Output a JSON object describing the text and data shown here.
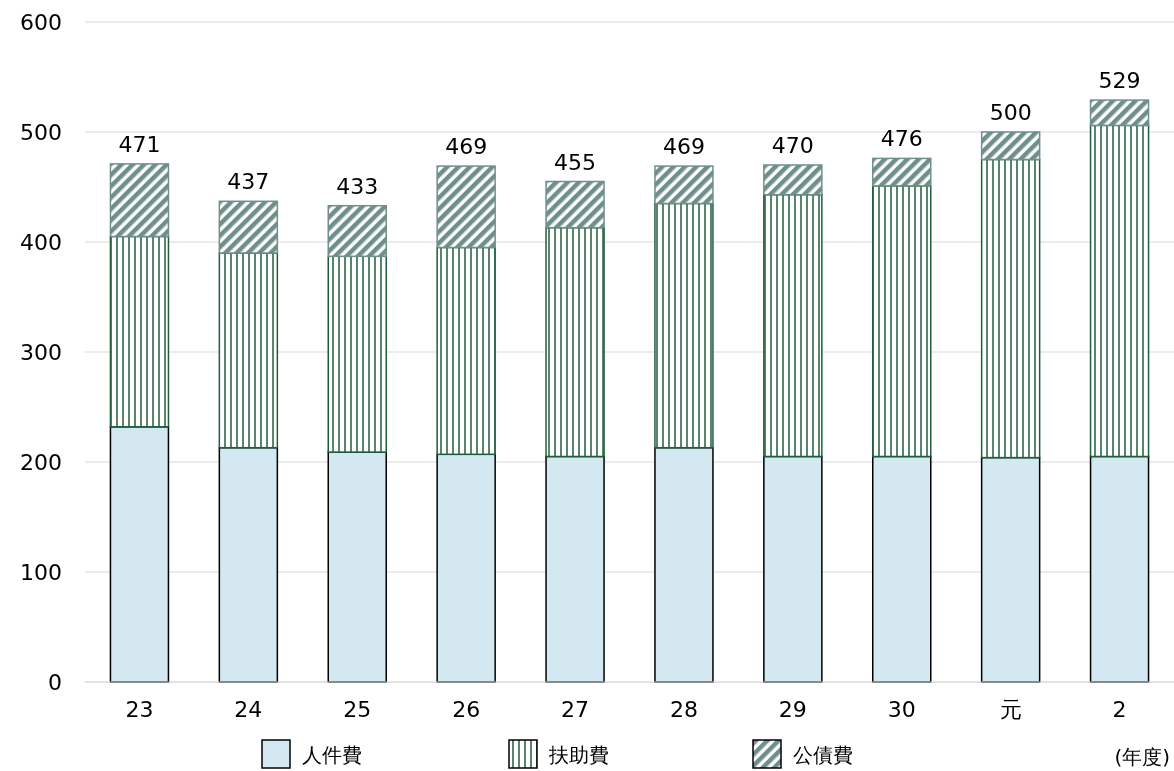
{
  "chart_data": {
    "type": "bar",
    "stacked": true,
    "xlabel": "(年度)",
    "categories": [
      "23",
      "24",
      "25",
      "26",
      "27",
      "28",
      "29",
      "30",
      "元",
      "2"
    ],
    "series": [
      {
        "name": "人件費",
        "color": "#d3e8f0",
        "values": [
          232,
          213,
          209,
          207,
          205,
          213,
          205,
          205,
          204,
          205
        ]
      },
      {
        "name": "扶助費",
        "color": "#1e5e3c",
        "values": [
          173,
          177,
          178,
          188,
          208,
          222,
          238,
          246,
          271,
          301
        ]
      },
      {
        "name": "公債費",
        "color": "#6f8f8a",
        "values": [
          66,
          47,
          46,
          74,
          42,
          34,
          27,
          25,
          25,
          23
        ]
      }
    ],
    "totals": [
      "471",
      "437",
      "433",
      "469",
      "455",
      "469",
      "470",
      "476",
      "500",
      "529"
    ],
    "ylim": [
      0,
      600
    ],
    "yticks": [
      0,
      100,
      200,
      300,
      400,
      500,
      600
    ],
    "grid": "y",
    "legend": "bottom"
  }
}
